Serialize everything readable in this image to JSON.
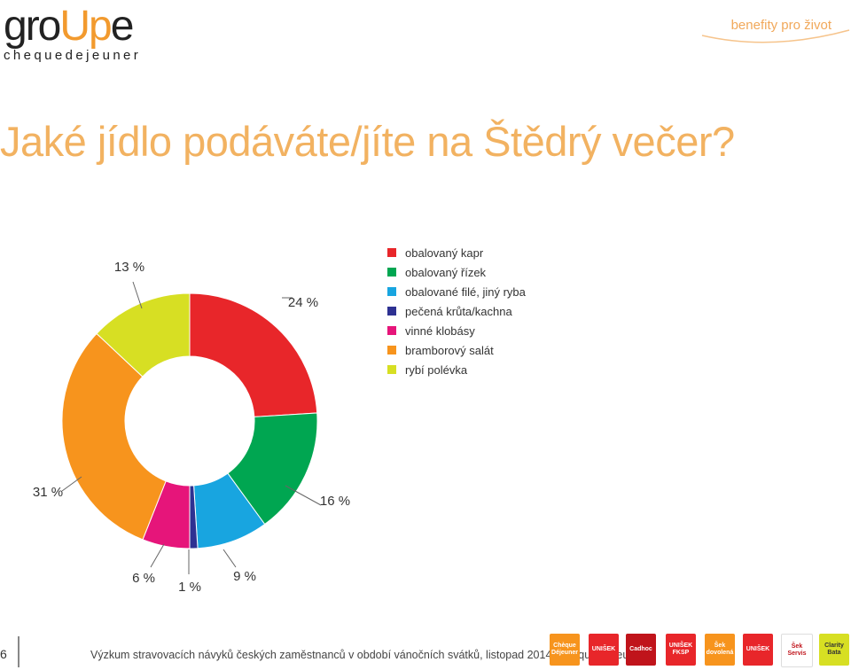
{
  "header": {
    "logo_pre": "gro",
    "logo_mid": "Up",
    "logo_post": "e",
    "logo_sub": "chequedejeuner",
    "tagline": "benefity pro život"
  },
  "title": "Jaké jídlo podáváte/jíte na Štědrý večer?",
  "chart_data": {
    "type": "pie",
    "variant": "donut",
    "title": "Jaké jídlo podáváte/jíte na Štědrý večer?",
    "categories": [
      "obalovaný kapr",
      "obalovaný řízek",
      "obalované filé, jiný ryba",
      "pečená krůta/kachna",
      "vinné klobásy",
      "bramborový salát",
      "rybí polévka"
    ],
    "values": [
      24,
      16,
      9,
      1,
      6,
      31,
      13
    ],
    "labels": [
      "24 %",
      "16 %",
      "9 %",
      "1 %",
      "6 %",
      "31 %",
      "13 %"
    ],
    "colors": [
      "#e8262a",
      "#00a651",
      "#18a5e0",
      "#2e3192",
      "#e6157a",
      "#f7941d",
      "#d7df23"
    ],
    "legend_position": "top-right"
  },
  "footer": {
    "page_number": "6",
    "note": "Výzkum stravovacích návyků českých zaměstnanců v období vánočních svátků, listopad 2014, Chèque Déjeuner"
  },
  "badges": [
    {
      "label": "Chèque Déjeuner",
      "color": "#f7941d"
    },
    {
      "label": "UNIŠEK",
      "color": "#e8262a"
    },
    {
      "label": "Cadhoc",
      "color": "#c0141b"
    },
    {
      "label": "UNIŠEK FKSP",
      "color": "#e8262a"
    },
    {
      "label": "Šek dovolená",
      "color": "#f7941d"
    },
    {
      "label": "UNIŠEK",
      "color": "#e8262a"
    },
    {
      "label": "Šek Servis",
      "color": "#ffffff"
    },
    {
      "label": "Clarity Bata",
      "color": "#d7df23"
    }
  ]
}
